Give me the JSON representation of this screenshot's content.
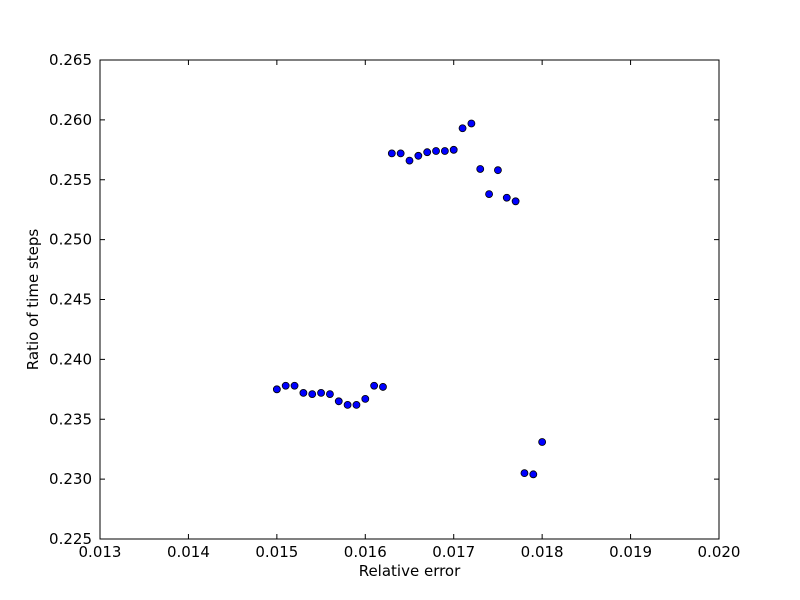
{
  "chart_data": {
    "type": "scatter",
    "title": "",
    "xlabel": "Relative error",
    "ylabel": "Ratio of time steps",
    "xlim": [
      0.013,
      0.02
    ],
    "ylim": [
      0.225,
      0.265
    ],
    "xticks": [
      0.013,
      0.014,
      0.015,
      0.016,
      0.017,
      0.018,
      0.019,
      0.02
    ],
    "xtick_labels": [
      "0.013",
      "0.014",
      "0.015",
      "0.016",
      "0.017",
      "0.018",
      "0.019",
      "0.020"
    ],
    "yticks": [
      0.225,
      0.23,
      0.235,
      0.24,
      0.245,
      0.25,
      0.255,
      0.26,
      0.265
    ],
    "ytick_labels": [
      "0.225",
      "0.230",
      "0.235",
      "0.240",
      "0.245",
      "0.250",
      "0.255",
      "0.260",
      "0.265"
    ],
    "grid": false,
    "marker_color": "#0000ff",
    "marker_edge_color": "#000000",
    "series": [
      {
        "points": [
          [
            0.015,
            0.2375
          ],
          [
            0.0151,
            0.2378
          ],
          [
            0.0152,
            0.2378
          ],
          [
            0.0153,
            0.2372
          ],
          [
            0.0154,
            0.2371
          ],
          [
            0.0155,
            0.2372
          ],
          [
            0.0156,
            0.2371
          ],
          [
            0.0157,
            0.2365
          ],
          [
            0.0158,
            0.2362
          ],
          [
            0.0159,
            0.2362
          ],
          [
            0.016,
            0.2367
          ],
          [
            0.0161,
            0.2378
          ],
          [
            0.0162,
            0.2377
          ],
          [
            0.0163,
            0.2572
          ],
          [
            0.0164,
            0.2572
          ],
          [
            0.0165,
            0.2566
          ],
          [
            0.0166,
            0.257
          ],
          [
            0.0167,
            0.2573
          ],
          [
            0.0168,
            0.2574
          ],
          [
            0.0169,
            0.2574
          ],
          [
            0.017,
            0.2575
          ],
          [
            0.0171,
            0.2593
          ],
          [
            0.0172,
            0.2597
          ],
          [
            0.0173,
            0.2559
          ],
          [
            0.0174,
            0.2538
          ],
          [
            0.0175,
            0.2558
          ],
          [
            0.0176,
            0.2535
          ],
          [
            0.0177,
            0.2532
          ],
          [
            0.0178,
            0.2305
          ],
          [
            0.0179,
            0.2304
          ],
          [
            0.018,
            0.2331
          ]
        ]
      }
    ]
  }
}
